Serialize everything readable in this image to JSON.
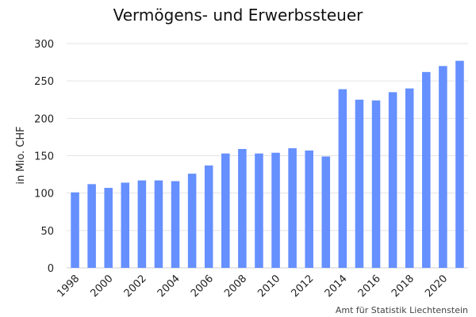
{
  "chart_data": {
    "type": "bar",
    "title": "Vermögens- und Erwerbssteuer",
    "xlabel": "",
    "ylabel": "in Mio. CHF",
    "source": "Amt für Statistik Liechtenstein",
    "categories": [
      "1998",
      "1999",
      "2000",
      "2001",
      "2002",
      "2003",
      "2004",
      "2005",
      "2006",
      "2007",
      "2008",
      "2009",
      "2010",
      "2011",
      "2012",
      "2013",
      "2014",
      "2015",
      "2016",
      "2017",
      "2018",
      "2019",
      "2020",
      "2021"
    ],
    "x_tick_labels": [
      "1998",
      "2000",
      "2002",
      "2004",
      "2006",
      "2008",
      "2010",
      "2012",
      "2014",
      "2016",
      "2018",
      "2020"
    ],
    "series": [
      {
        "values": [
          101,
          112,
          107,
          114,
          117,
          117,
          116,
          126,
          137,
          153,
          159,
          153,
          154,
          160,
          157,
          149,
          239,
          225,
          224,
          235,
          240,
          262,
          270,
          277
        ],
        "color": "#6690ff"
      }
    ],
    "ylim": [
      0,
      300
    ],
    "yticks": [
      0,
      50,
      100,
      150,
      200,
      250,
      300
    ],
    "grid": true,
    "legend": "none"
  }
}
